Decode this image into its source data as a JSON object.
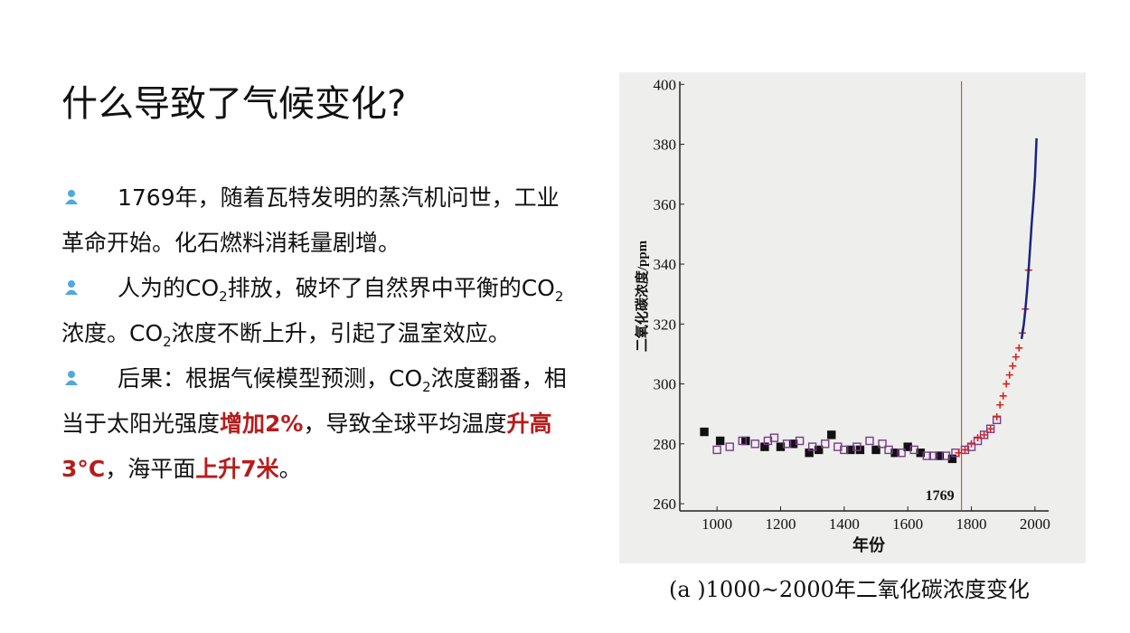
{
  "title": "什么导致了气候变化?",
  "bullets": [
    {
      "parts": [
        {
          "text": "1769年，随着瓦特发明的蒸汽机问世，工业革命开始。化石燃料消耗量剧增。",
          "style": "normal"
        }
      ]
    },
    {
      "parts": [
        {
          "text": "人为的CO",
          "style": "normal"
        },
        {
          "text": "2",
          "style": "sub"
        },
        {
          "text": "排放，破坏了自然界中平衡的CO",
          "style": "normal"
        },
        {
          "text": "2",
          "style": "sub"
        },
        {
          "text": "浓度。CO",
          "style": "normal"
        },
        {
          "text": "2",
          "style": "sub"
        },
        {
          "text": "浓度不断上升，引起了温室效应。",
          "style": "normal"
        }
      ]
    },
    {
      "parts": [
        {
          "text": "后果：根据气候模型预测，CO",
          "style": "normal"
        },
        {
          "text": "2",
          "style": "sub"
        },
        {
          "text": "浓度翻番，相当于太阳光强度",
          "style": "normal"
        },
        {
          "text": "增加2%",
          "style": "emph"
        },
        {
          "text": "，导致全球平均温度",
          "style": "normal"
        },
        {
          "text": "升高3°C",
          "style": "emph"
        },
        {
          "text": "，海平面",
          "style": "normal"
        },
        {
          "text": "上升7米",
          "style": "emph"
        },
        {
          "text": "。",
          "style": "normal"
        }
      ]
    }
  ],
  "figure": {
    "type": "scatter",
    "caption": "(a )1000~2000年二氧化碳浓度变化",
    "xlabel": "年份",
    "ylabel": "二氧化碳浓度/ppm",
    "xlim": [
      883,
      2043
    ],
    "ylim": [
      257.6,
      401
    ],
    "xticks": [
      1000,
      1200,
      1400,
      1600,
      1800,
      2000
    ],
    "yticks": [
      260,
      280,
      300,
      320,
      340,
      360,
      380,
      400
    ],
    "marker_year": 1769,
    "series": [
      {
        "color": "#111111",
        "marker": "filled-square",
        "x": [
          960,
          1010,
          1090,
          1150,
          1200,
          1240,
          1290,
          1320,
          1360,
          1420,
          1450,
          1500,
          1560,
          1600,
          1640,
          1700,
          1740
        ],
        "values": [
          284,
          281,
          281,
          279,
          279,
          280,
          277,
          278,
          283,
          278,
          278,
          278,
          277,
          279,
          277,
          276,
          275
        ]
      },
      {
        "color": "#7a3a8c",
        "marker": "open-square",
        "x": [
          1000,
          1040,
          1080,
          1120,
          1160,
          1180,
          1220,
          1260,
          1300,
          1340,
          1380,
          1400,
          1440,
          1480,
          1520,
          1540,
          1580,
          1620,
          1660,
          1680,
          1720,
          1750,
          1780,
          1800,
          1820,
          1840,
          1860,
          1880
        ],
        "values": [
          278,
          279,
          281,
          280,
          281,
          282,
          280,
          281,
          279,
          280,
          279,
          278,
          279,
          281,
          280,
          278,
          277,
          278,
          276,
          276,
          276,
          277,
          278,
          279,
          281,
          283,
          285,
          288
        ]
      },
      {
        "color": "#e0201a",
        "marker": "cross",
        "x": [
          1760,
          1780,
          1800,
          1820,
          1840,
          1860,
          1880,
          1890,
          1900,
          1910,
          1920,
          1930,
          1940,
          1950,
          1960,
          1970,
          1980
        ],
        "values": [
          277,
          278,
          280,
          282,
          283,
          285,
          289,
          293,
          296,
          300,
          303,
          306,
          309,
          312,
          317,
          325,
          338
        ]
      },
      {
        "color": "#1a237e",
        "marker": "line",
        "x": [
          1958,
          1965,
          1970,
          1975,
          1980,
          1985,
          1990,
          1995,
          2000,
          2005
        ],
        "values": [
          315,
          320,
          325,
          331,
          338,
          346,
          354,
          361,
          369,
          382
        ]
      }
    ]
  }
}
